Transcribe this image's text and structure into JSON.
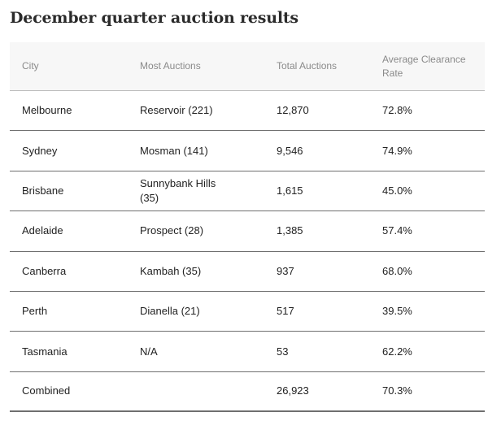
{
  "title": "December quarter auction results",
  "table": {
    "headers": {
      "city": "City",
      "most_auctions": "Most Auctions",
      "total_auctions": "Total Auctions",
      "clearance_rate": "Average Clearance Rate"
    },
    "rows": [
      {
        "city": "Melbourne",
        "most_auctions": "Reservoir (221)",
        "total_auctions": "12,870",
        "clearance_rate": "72.8%"
      },
      {
        "city": "Sydney",
        "most_auctions": "Mosman (141)",
        "total_auctions": "9,546",
        "clearance_rate": "74.9%"
      },
      {
        "city": "Brisbane",
        "most_auctions": "Sunnybank Hills (35)",
        "total_auctions": "1,615",
        "clearance_rate": "45.0%"
      },
      {
        "city": "Adelaide",
        "most_auctions": "Prospect (28)",
        "total_auctions": "1,385",
        "clearance_rate": "57.4%"
      },
      {
        "city": "Canberra",
        "most_auctions": "Kambah (35)",
        "total_auctions": "937",
        "clearance_rate": "68.0%"
      },
      {
        "city": "Perth",
        "most_auctions": "Dianella (21)",
        "total_auctions": "517",
        "clearance_rate": "39.5%"
      },
      {
        "city": "Tasmania",
        "most_auctions": "N/A",
        "total_auctions": "53",
        "clearance_rate": "62.2%"
      },
      {
        "city": "Combined",
        "most_auctions": "",
        "total_auctions": "26,923",
        "clearance_rate": "70.3%"
      }
    ]
  }
}
